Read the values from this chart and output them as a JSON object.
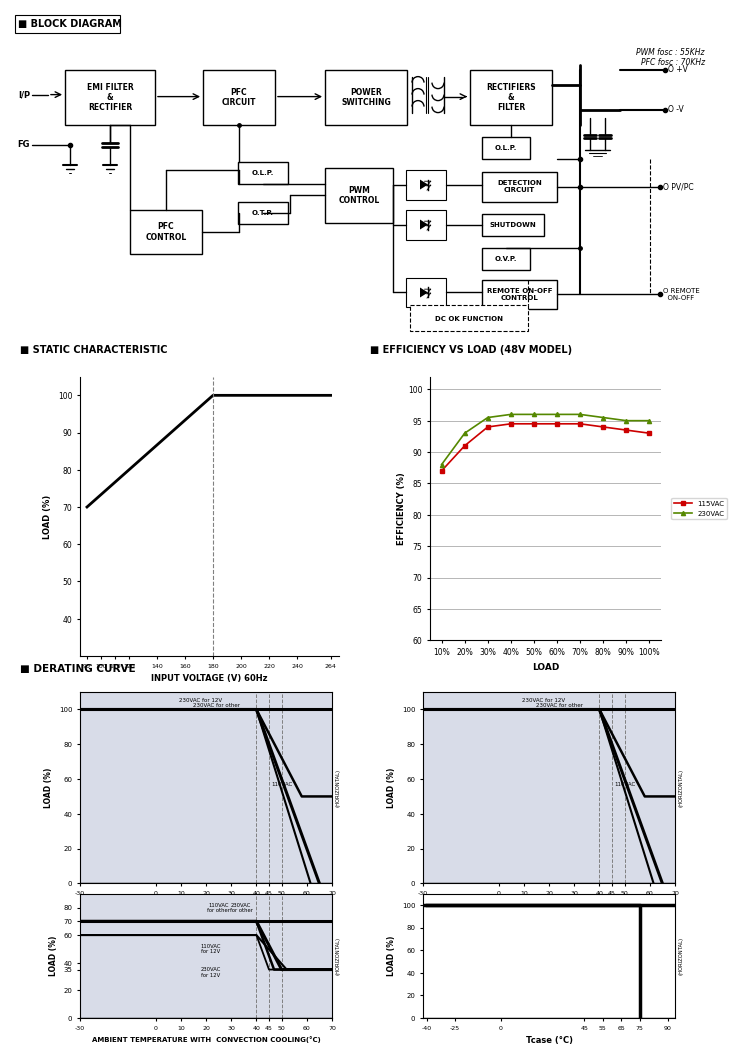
{
  "title_block": "BLOCK DIAGRAM",
  "title_static": "STATIC CHARACTERISTIC",
  "title_efficiency": "EFFICIENCY VS LOAD (48V MODEL)",
  "title_derating": "DERATING CURVE",
  "pwm_fosc": "PWM fosc : 55KHz",
  "pfc_fosc": "PFC fosc : 70KHz",
  "static_char": {
    "x": [
      90,
      180,
      264
    ],
    "y": [
      70,
      100,
      100
    ],
    "xlim": [
      85,
      270
    ],
    "ylim": [
      30,
      105
    ],
    "xticks": [
      90,
      100,
      110,
      120,
      140,
      160,
      180,
      200,
      220,
      240,
      264
    ],
    "yticks": [
      40,
      50,
      60,
      70,
      80,
      90,
      100
    ],
    "xlabel": "INPUT VOLTAGE (V) 60Hz",
    "ylabel": "LOAD (%)",
    "vline": 180
  },
  "efficiency": {
    "load_pct": [
      "10%",
      "20%",
      "30%",
      "40%",
      "50%",
      "60%",
      "70%",
      "80%",
      "90%",
      "100%"
    ],
    "load_x": [
      10,
      20,
      30,
      40,
      50,
      60,
      70,
      80,
      90,
      100
    ],
    "v115": [
      87,
      91,
      94,
      94.5,
      94.5,
      94.5,
      94.5,
      94,
      93.5,
      93
    ],
    "v230": [
      88,
      93,
      95.5,
      96,
      96,
      96,
      96,
      95.5,
      95,
      95
    ],
    "ylim": [
      60,
      102
    ],
    "yticks": [
      60,
      65,
      70,
      75,
      80,
      85,
      90,
      95,
      100
    ],
    "ylabel": "EFFICIENCY (%)",
    "xlabel": "LOAD",
    "color_115": "#cc0000",
    "color_230": "#558800",
    "label_115": "115VAC",
    "label_230": "230VAC"
  },
  "bg_color": "#d8dce8"
}
